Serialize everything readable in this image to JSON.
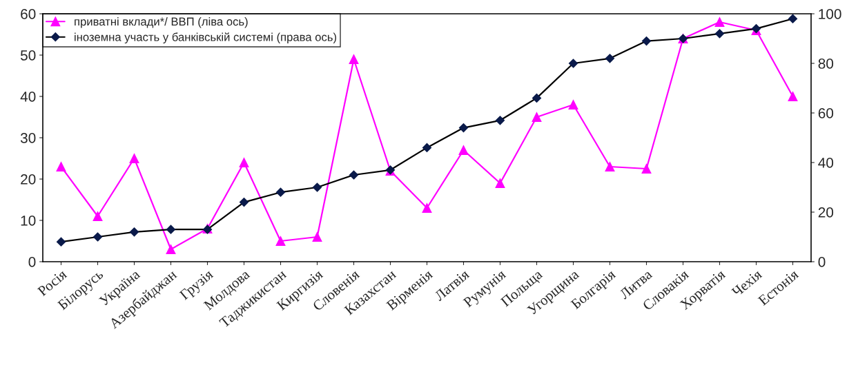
{
  "chart_data": {
    "type": "line",
    "categories": [
      "Росія",
      "Білорусь",
      "Україна",
      "Азербайджан",
      "Грузія",
      "Молдова",
      "Таджикистан",
      "Киргизія",
      "Словенія",
      "Казахстан",
      "Вірменія",
      "Латвія",
      "Румунія",
      "Польща",
      "Угорщина",
      "Болгарія",
      "Литва",
      "Словакія",
      "Хорватія",
      "Чехія",
      "Естонія"
    ],
    "series": [
      {
        "name": "приватні вклади*/ ВВП (ліва ось)",
        "color": "#ff00ff",
        "marker": "triangle",
        "values": [
          23,
          11,
          25,
          3,
          8,
          24,
          5,
          6,
          49,
          22,
          13,
          27,
          19,
          35,
          38,
          23,
          22.5,
          54,
          58,
          56,
          40
        ]
      },
      {
        "name": "іноземна участь у банківській системі (права ось)",
        "color": "#000000",
        "marker": "diamond",
        "axis": "y2",
        "values": [
          8,
          10,
          12,
          13,
          13,
          24,
          28,
          30,
          35,
          37,
          46,
          54,
          57,
          66,
          80,
          82,
          89,
          90,
          92,
          94,
          98
        ]
      }
    ],
    "ylim": [
      0,
      60
    ],
    "yticks": [
      0,
      10,
      20,
      30,
      40,
      50,
      60
    ],
    "y2lim": [
      0,
      100
    ],
    "y2ticks": [
      0,
      20,
      40,
      60,
      80,
      100
    ],
    "legend": "top left",
    "grid": false
  }
}
